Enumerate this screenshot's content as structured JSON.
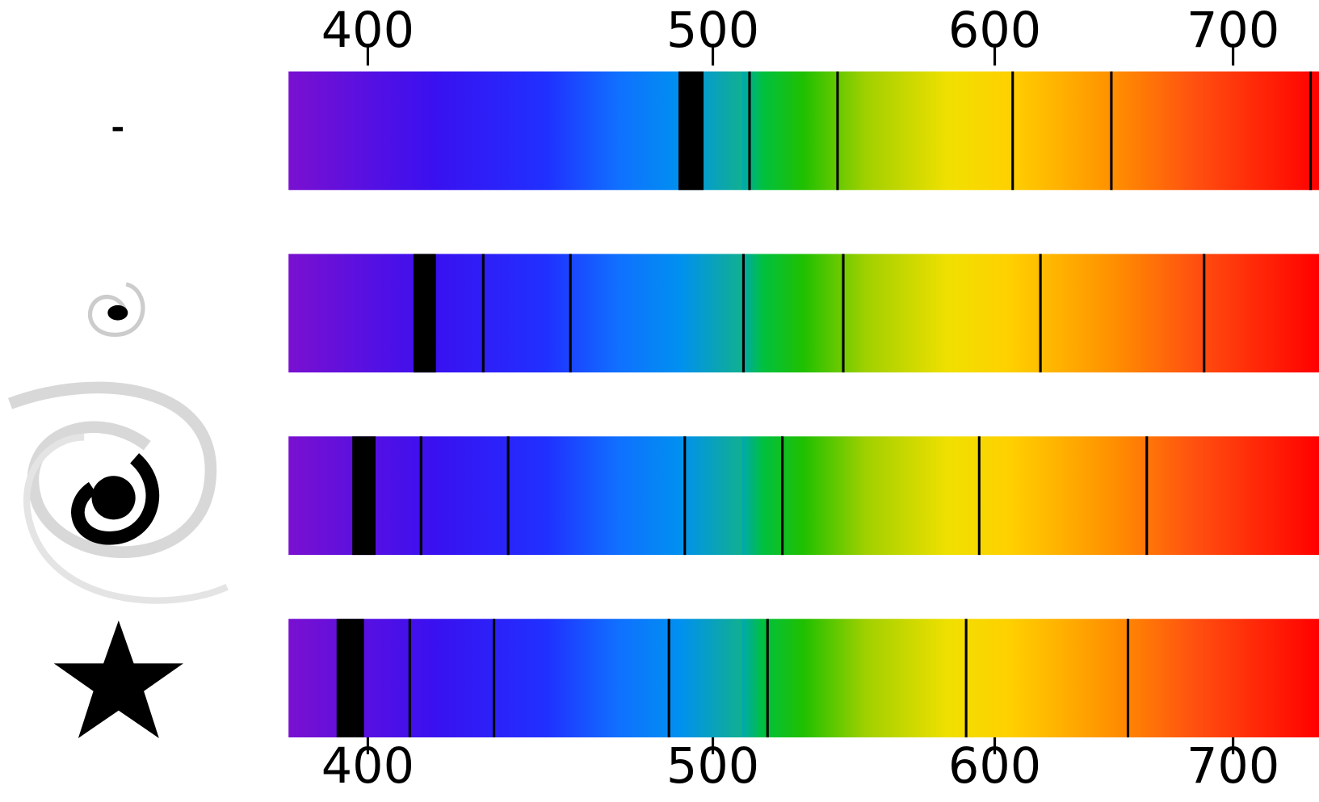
{
  "axis": {
    "scale": "log",
    "lim": [
      380,
      740
    ],
    "ticks": [
      400,
      500,
      600,
      700
    ]
  },
  "spectra": [
    {
      "bands": [
        [
          489,
          497
        ]
      ],
      "lines": [
        512,
        542,
        607,
        647,
        736
      ]
    },
    {
      "bands": [
        [
          412,
          418
        ]
      ],
      "lines": [
        431,
        456,
        510,
        544,
        618,
        687
      ]
    },
    {
      "bands": [
        [
          396,
          402
        ]
      ],
      "lines": [
        414,
        438,
        491,
        523,
        594,
        662
      ]
    },
    {
      "bands": [
        [
          392,
          399
        ]
      ],
      "lines": [
        411,
        434,
        486,
        518,
        589,
        654
      ]
    }
  ]
}
